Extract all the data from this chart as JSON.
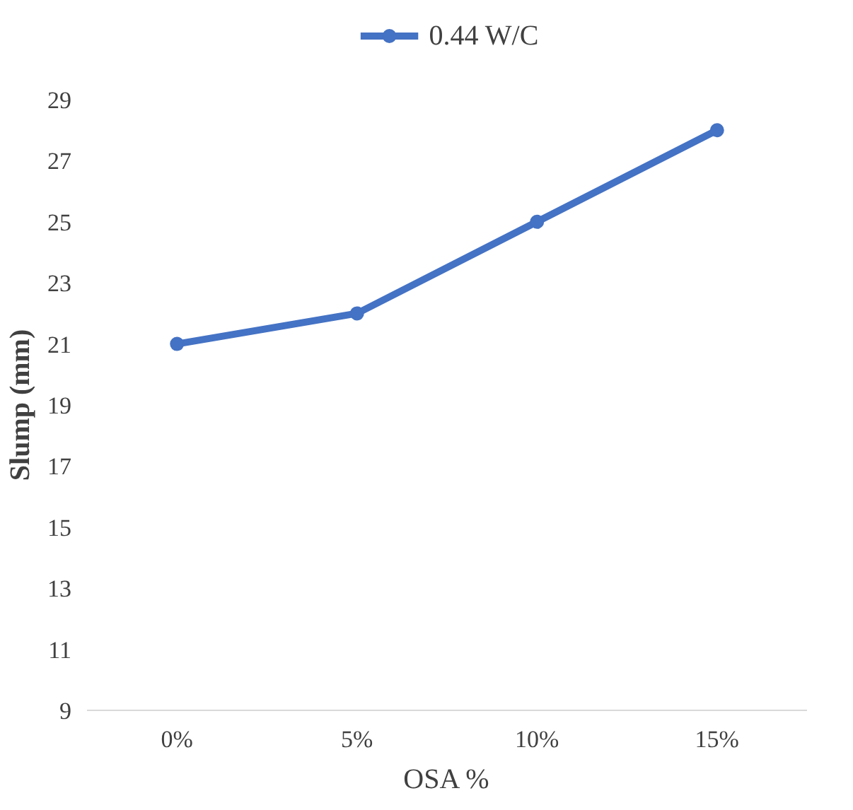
{
  "chart_data": {
    "type": "line",
    "xlabel": "OSA %",
    "ylabel": "Slump (mm)",
    "categories": [
      "0%",
      "5%",
      "10%",
      "15%"
    ],
    "series": [
      {
        "name": "0.44 W/C",
        "color": "#4472c4",
        "values": [
          21,
          22,
          25,
          28
        ]
      }
    ],
    "ylim": [
      9,
      29
    ],
    "yticks": [
      9,
      11,
      13,
      15,
      17,
      19,
      21,
      23,
      25,
      27,
      29
    ],
    "grid": false,
    "legend": "top",
    "marker": "circle",
    "line_style": "solid"
  }
}
